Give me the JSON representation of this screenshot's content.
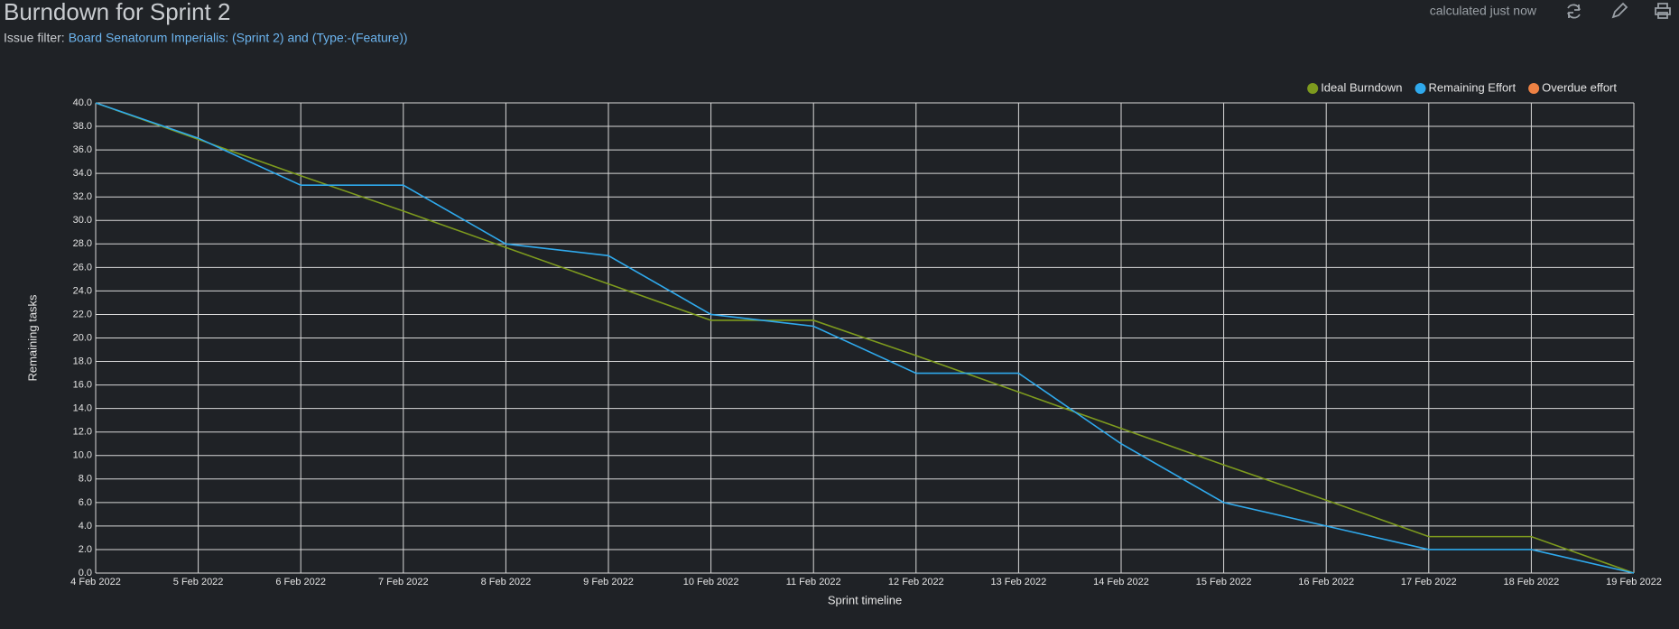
{
  "header": {
    "title": "Burndown for Sprint 2",
    "filter_label": "Issue filter:",
    "filter_text": "Board Senatorum Imperialis: (Sprint 2) and (Type:-(Feature))",
    "status": "calculated just now"
  },
  "chart_data": {
    "type": "line",
    "x_label": "Sprint timeline",
    "y_label": "Remaining tasks",
    "categories": [
      "4 Feb 2022",
      "5 Feb 2022",
      "6 Feb 2022",
      "7 Feb 2022",
      "8 Feb 2022",
      "9 Feb 2022",
      "10 Feb 2022",
      "11 Feb 2022",
      "12 Feb 2022",
      "13 Feb 2022",
      "14 Feb 2022",
      "15 Feb 2022",
      "16 Feb 2022",
      "17 Feb 2022",
      "18 Feb 2022",
      "19 Feb 2022"
    ],
    "series": [
      {
        "name": "Ideal Burndown",
        "color": "#7d9a1e",
        "values": [
          40,
          36.9,
          33.8,
          30.8,
          27.7,
          24.6,
          21.5,
          21.5,
          18.5,
          15.4,
          12.3,
          9.2,
          6.2,
          3.1,
          3.1,
          0
        ]
      },
      {
        "name": "Remaining Effort",
        "color": "#2fa9ec",
        "values": [
          40,
          37,
          33,
          33,
          28,
          27,
          22,
          21,
          17,
          17,
          11,
          6,
          4,
          2,
          2,
          0
        ]
      },
      {
        "name": "Overdue effort",
        "color": "#ee8244",
        "values": [
          null,
          null,
          null,
          null,
          null,
          null,
          null,
          null,
          null,
          null,
          null,
          null,
          null,
          null,
          null,
          null
        ]
      }
    ],
    "ylim": [
      0,
      40
    ],
    "yticks": [
      {
        "value": 0,
        "label": "0.0"
      },
      {
        "value": 2,
        "label": "2.0"
      },
      {
        "value": 4,
        "label": "4.0"
      },
      {
        "value": 6,
        "label": "6.0"
      },
      {
        "value": 8,
        "label": "8.0"
      },
      {
        "value": 10,
        "label": "10.0"
      },
      {
        "value": 12,
        "label": "12.0"
      },
      {
        "value": 14,
        "label": "14.0"
      },
      {
        "value": 16,
        "label": "16.0"
      },
      {
        "value": 18,
        "label": "18.0"
      },
      {
        "value": 20,
        "label": "20.0"
      },
      {
        "value": 22,
        "label": "22.0"
      },
      {
        "value": 24,
        "label": "24.0"
      },
      {
        "value": 26,
        "label": "26.0"
      },
      {
        "value": 28,
        "label": "28.0"
      },
      {
        "value": 30,
        "label": "30.0"
      },
      {
        "value": 32,
        "label": "32.0"
      },
      {
        "value": 34,
        "label": "34.0"
      },
      {
        "value": 36,
        "label": "36.0"
      },
      {
        "value": 38,
        "label": "38.0"
      },
      {
        "value": 40,
        "label": "40.0"
      }
    ],
    "grid": true,
    "legend": "top-right"
  }
}
